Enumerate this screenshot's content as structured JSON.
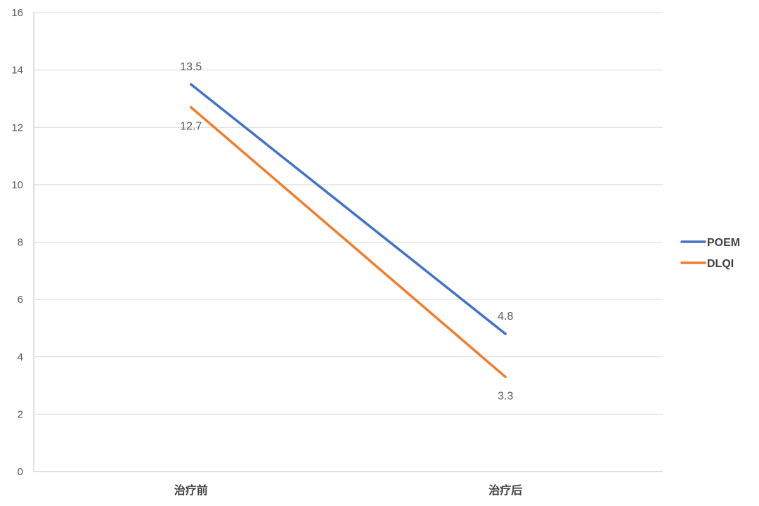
{
  "chart_data": {
    "type": "line",
    "title": "",
    "xlabel": "",
    "ylabel": "",
    "categories": [
      "治疗前",
      "治疗后"
    ],
    "ylim": [
      0,
      16
    ],
    "yticks": [
      0,
      2,
      4,
      6,
      8,
      10,
      12,
      14,
      16
    ],
    "grid": true,
    "legend_position": "right",
    "series": [
      {
        "name": "POEM",
        "values": [
          13.5,
          4.8
        ],
        "color": "#4472C4",
        "labels": [
          "13.5",
          "4.8"
        ],
        "label_side": "above"
      },
      {
        "name": "DLQI",
        "values": [
          12.7,
          3.3
        ],
        "color": "#ED7D31",
        "labels": [
          "12.7",
          "3.3"
        ],
        "label_side": "below"
      }
    ]
  }
}
